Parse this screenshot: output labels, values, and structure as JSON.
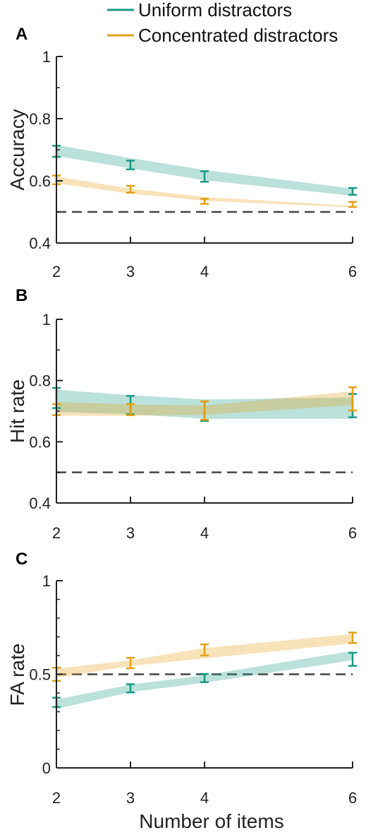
{
  "legend": {
    "items": [
      {
        "label": "Uniform distractors",
        "color": "#1a9a86"
      },
      {
        "label": "Concentrated distractors",
        "color": "#e3a016"
      }
    ]
  },
  "xlabel": "Number of items",
  "chart_data": [
    {
      "type": "line",
      "panel": "A",
      "ylabel": "Accuracy",
      "x": [
        2,
        3,
        4,
        6
      ],
      "xticks": [
        "2",
        "3",
        "4",
        "6"
      ],
      "ylim": [
        0.4,
        1
      ],
      "yticks": [
        "0.4",
        "0.6",
        "0.8",
        "1"
      ],
      "reference_line": 0.5,
      "series": [
        {
          "name": "Uniform distractors",
          "color": "#1a9a86",
          "values": [
            0.695,
            0.651,
            0.614,
            0.566
          ],
          "errors": [
            0.018,
            0.014,
            0.017,
            0.011
          ],
          "band_low": [
            0.68,
            0.64,
            0.602,
            0.552
          ],
          "band_high": [
            0.716,
            0.673,
            0.635,
            0.575
          ]
        },
        {
          "name": "Concentrated distractors",
          "color": "#e3a016",
          "values": [
            0.603,
            0.573,
            0.534,
            0.524
          ],
          "errors": [
            0.014,
            0.011,
            0.008,
            0.008
          ],
          "band_low": [
            0.592,
            0.559,
            0.536,
            0.515
          ],
          "band_high": [
            0.614,
            0.575,
            0.548,
            0.52
          ]
        }
      ]
    },
    {
      "type": "line",
      "panel": "B",
      "ylabel": "Hit rate",
      "x": [
        2,
        3,
        4,
        6
      ],
      "xticks": [
        "2",
        "3",
        "4",
        "6"
      ],
      "ylim": [
        0.4,
        1
      ],
      "yticks": [
        "0.4",
        "0.6",
        "0.8",
        "1"
      ],
      "reference_line": 0.5,
      "series": [
        {
          "name": "Uniform distractors",
          "color": "#1a9a86",
          "values": [
            0.743,
            0.72,
            0.7,
            0.718
          ],
          "errors": [
            0.033,
            0.03,
            0.032,
            0.038
          ],
          "band_low": [
            0.698,
            0.69,
            0.675,
            0.675
          ],
          "band_high": [
            0.77,
            0.752,
            0.738,
            0.745
          ]
        },
        {
          "name": "Concentrated distractors",
          "color": "#e3a016",
          "values": [
            0.705,
            0.705,
            0.702,
            0.74
          ],
          "errors": [
            0.018,
            0.018,
            0.03,
            0.038
          ],
          "band_low": [
            0.685,
            0.685,
            0.688,
            0.72
          ],
          "band_high": [
            0.73,
            0.722,
            0.718,
            0.765
          ]
        }
      ]
    },
    {
      "type": "line",
      "panel": "C",
      "ylabel": "FA rate",
      "x": [
        2,
        3,
        4,
        6
      ],
      "xticks": [
        "2",
        "3",
        "4",
        "6"
      ],
      "ylim": [
        0,
        1
      ],
      "yticks": [
        "0",
        "0.5",
        "1"
      ],
      "reference_line": 0.5,
      "series": [
        {
          "name": "Uniform distractors",
          "color": "#1a9a86",
          "values": [
            0.35,
            0.425,
            0.48,
            0.58
          ],
          "errors": [
            0.025,
            0.022,
            0.022,
            0.035
          ],
          "band_low": [
            0.315,
            0.405,
            0.455,
            0.575
          ],
          "band_high": [
            0.365,
            0.445,
            0.495,
            0.625
          ]
        },
        {
          "name": "Concentrated distractors",
          "color": "#e3a016",
          "values": [
            0.5,
            0.56,
            0.63,
            0.695
          ],
          "errors": [
            0.035,
            0.028,
            0.03,
            0.028
          ],
          "band_low": [
            0.48,
            0.545,
            0.585,
            0.665
          ],
          "band_high": [
            0.53,
            0.575,
            0.64,
            0.715
          ]
        }
      ]
    }
  ]
}
